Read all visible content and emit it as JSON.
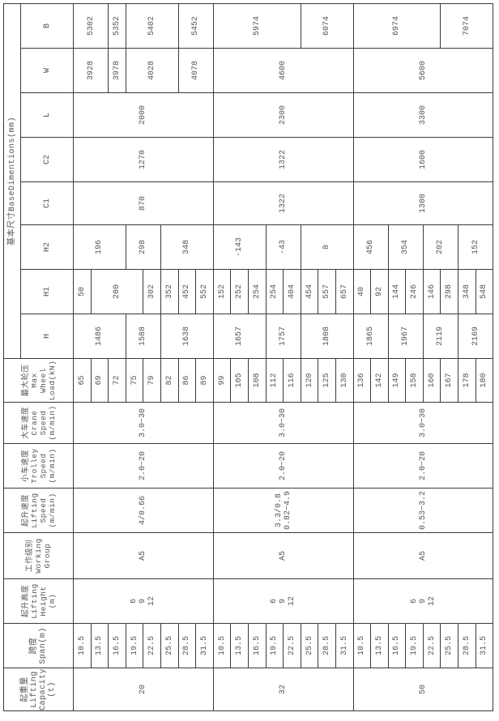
{
  "headers": {
    "capacity": "起重量\nLifting\nCapacity\n(t)",
    "span": "跨度\nSpan(m)",
    "lifting_height": "起升高度\nLifting\nHeight\n(m)",
    "working_group": "工作级别\nWorking\nGroup",
    "lifting_speed": "起升速度\nLifting\nSpeed\n(m/min)",
    "trolley_speed": "小车速度\nTrolley\nSpeed\n(m/min)",
    "crane_speed": "大车速度\nCrane\nSpeed\n(m/min)",
    "wheel_load": "最大轮压\nMax\nWheel\nLoad(kN)",
    "base_dimensions": "基本尺寸BaseDimentions(mm)",
    "dims": [
      "H",
      "H1",
      "H2",
      "C1",
      "C2",
      "L",
      "W",
      "B"
    ]
  },
  "groups": [
    {
      "capacity": "20",
      "spans": [
        "10.5",
        "13.5",
        "16.5",
        "19.5",
        "22.5",
        "25.5",
        "28.5",
        "31.5"
      ],
      "lifting_height": "6\n9\n12",
      "working_group": "A5",
      "lifting_speed": "4/0.66",
      "trolley_speed": "2.0~20",
      "crane_speed": "3.0~30",
      "wheel_load": [
        "65",
        "69",
        "72",
        "75",
        "79",
        "82",
        "86",
        "89"
      ],
      "H": [
        {
          "value": "1486",
          "rows": 3
        },
        {
          "value": "1588",
          "rows": 2
        },
        {
          "value": "1638",
          "rows": 3
        }
      ],
      "H1": [
        {
          "value": "50",
          "rows": 1
        },
        {
          "value": "200",
          "rows": 3
        },
        {
          "value": "302",
          "rows": 1
        },
        {
          "value": "352",
          "rows": 1
        },
        {
          "value": "452",
          "rows": 1
        },
        {
          "value": "552",
          "rows": 1
        }
      ],
      "H2": [
        {
          "value": "196",
          "rows": 3
        },
        {
          "value": "298",
          "rows": 2
        },
        {
          "value": "348",
          "rows": 3
        }
      ],
      "C1": [
        {
          "value": "870",
          "rows": 8
        }
      ],
      "C2": [
        {
          "value": "1270",
          "rows": 8
        }
      ],
      "L": [
        {
          "value": "2000",
          "rows": 8
        }
      ],
      "W": [
        {
          "value": "3928",
          "rows": 2
        },
        {
          "value": "3978",
          "rows": 1
        },
        {
          "value": "4028",
          "rows": 3
        },
        {
          "value": "4078",
          "rows": 2
        }
      ],
      "B": [
        {
          "value": "5302",
          "rows": 2
        },
        {
          "value": "5352",
          "rows": 1
        },
        {
          "value": "5402",
          "rows": 3
        },
        {
          "value": "5452",
          "rows": 2
        }
      ]
    },
    {
      "capacity": "32",
      "spans": [
        "10.5",
        "13.5",
        "16.5",
        "19.5",
        "22.5",
        "25.5",
        "28.5",
        "31.5"
      ],
      "lifting_height": "6\n9\n12",
      "working_group": "A5",
      "lifting_speed": "3.3/0.8\n0.82~4.9",
      "trolley_speed": "2.0~20",
      "crane_speed": "3.0~30",
      "wheel_load": [
        "99",
        "105",
        "108",
        "112",
        "116",
        "120",
        "125",
        "130"
      ],
      "H": [
        {
          "value": "1657",
          "rows": 3
        },
        {
          "value": "1757",
          "rows": 2
        },
        {
          "value": "1808",
          "rows": 3
        }
      ],
      "H1": [
        {
          "value": "152",
          "rows": 1
        },
        {
          "value": "252",
          "rows": 1
        },
        {
          "value": "254",
          "rows": 1
        },
        {
          "value": "254",
          "rows": 1
        },
        {
          "value": "404",
          "rows": 1
        },
        {
          "value": "454",
          "rows": 1
        },
        {
          "value": "557",
          "rows": 1
        },
        {
          "value": "657",
          "rows": 1
        }
      ],
      "H2": [
        {
          "value": "-143",
          "rows": 3
        },
        {
          "value": "-43",
          "rows": 2
        },
        {
          "value": "8",
          "rows": 3
        }
      ],
      "C1": [
        {
          "value": "1322",
          "rows": 8
        }
      ],
      "C2": [
        {
          "value": "1322",
          "rows": 8
        }
      ],
      "L": [
        {
          "value": "2300",
          "rows": 8
        }
      ],
      "W": [
        {
          "value": "4600",
          "rows": 8
        }
      ],
      "B": [
        {
          "value": "5974",
          "rows": 5
        },
        {
          "value": "6074",
          "rows": 3
        }
      ]
    },
    {
      "capacity": "50",
      "spans": [
        "10.5",
        "13.5",
        "16.5",
        "19.5",
        "22.5",
        "25.5",
        "28.5",
        "31.5"
      ],
      "lifting_height": "6\n9\n12",
      "working_group": "A5",
      "lifting_speed": "0.53~3.2",
      "trolley_speed": "2.0~20",
      "crane_speed": "3.0~30",
      "wheel_load": [
        "136",
        "142",
        "149",
        "158",
        "160",
        "167",
        "178",
        "180"
      ],
      "H": [
        {
          "value": "1865",
          "rows": 2
        },
        {
          "value": "1967",
          "rows": 2
        },
        {
          "value": "2119",
          "rows": 2
        },
        {
          "value": "2169",
          "rows": 2
        }
      ],
      "H1": [
        {
          "value": "40",
          "rows": 1
        },
        {
          "value": "92",
          "rows": 1
        },
        {
          "value": "144",
          "rows": 1
        },
        {
          "value": "246",
          "rows": 1
        },
        {
          "value": "146",
          "rows": 1
        },
        {
          "value": "298",
          "rows": 1
        },
        {
          "value": "348",
          "rows": 1
        },
        {
          "value": "548",
          "rows": 1
        }
      ],
      "H2": [
        {
          "value": "456",
          "rows": 2
        },
        {
          "value": "354",
          "rows": 2
        },
        {
          "value": "202",
          "rows": 2
        },
        {
          "value": "152",
          "rows": 2
        }
      ],
      "C1": [
        {
          "value": "1300",
          "rows": 8
        }
      ],
      "C2": [
        {
          "value": "1600",
          "rows": 8
        }
      ],
      "L": [
        {
          "value": "3300",
          "rows": 8
        }
      ],
      "W": [
        {
          "value": "5600",
          "rows": 8
        }
      ],
      "B": [
        {
          "value": "6974",
          "rows": 5
        },
        {
          "value": "7074",
          "rows": 3
        }
      ]
    }
  ]
}
